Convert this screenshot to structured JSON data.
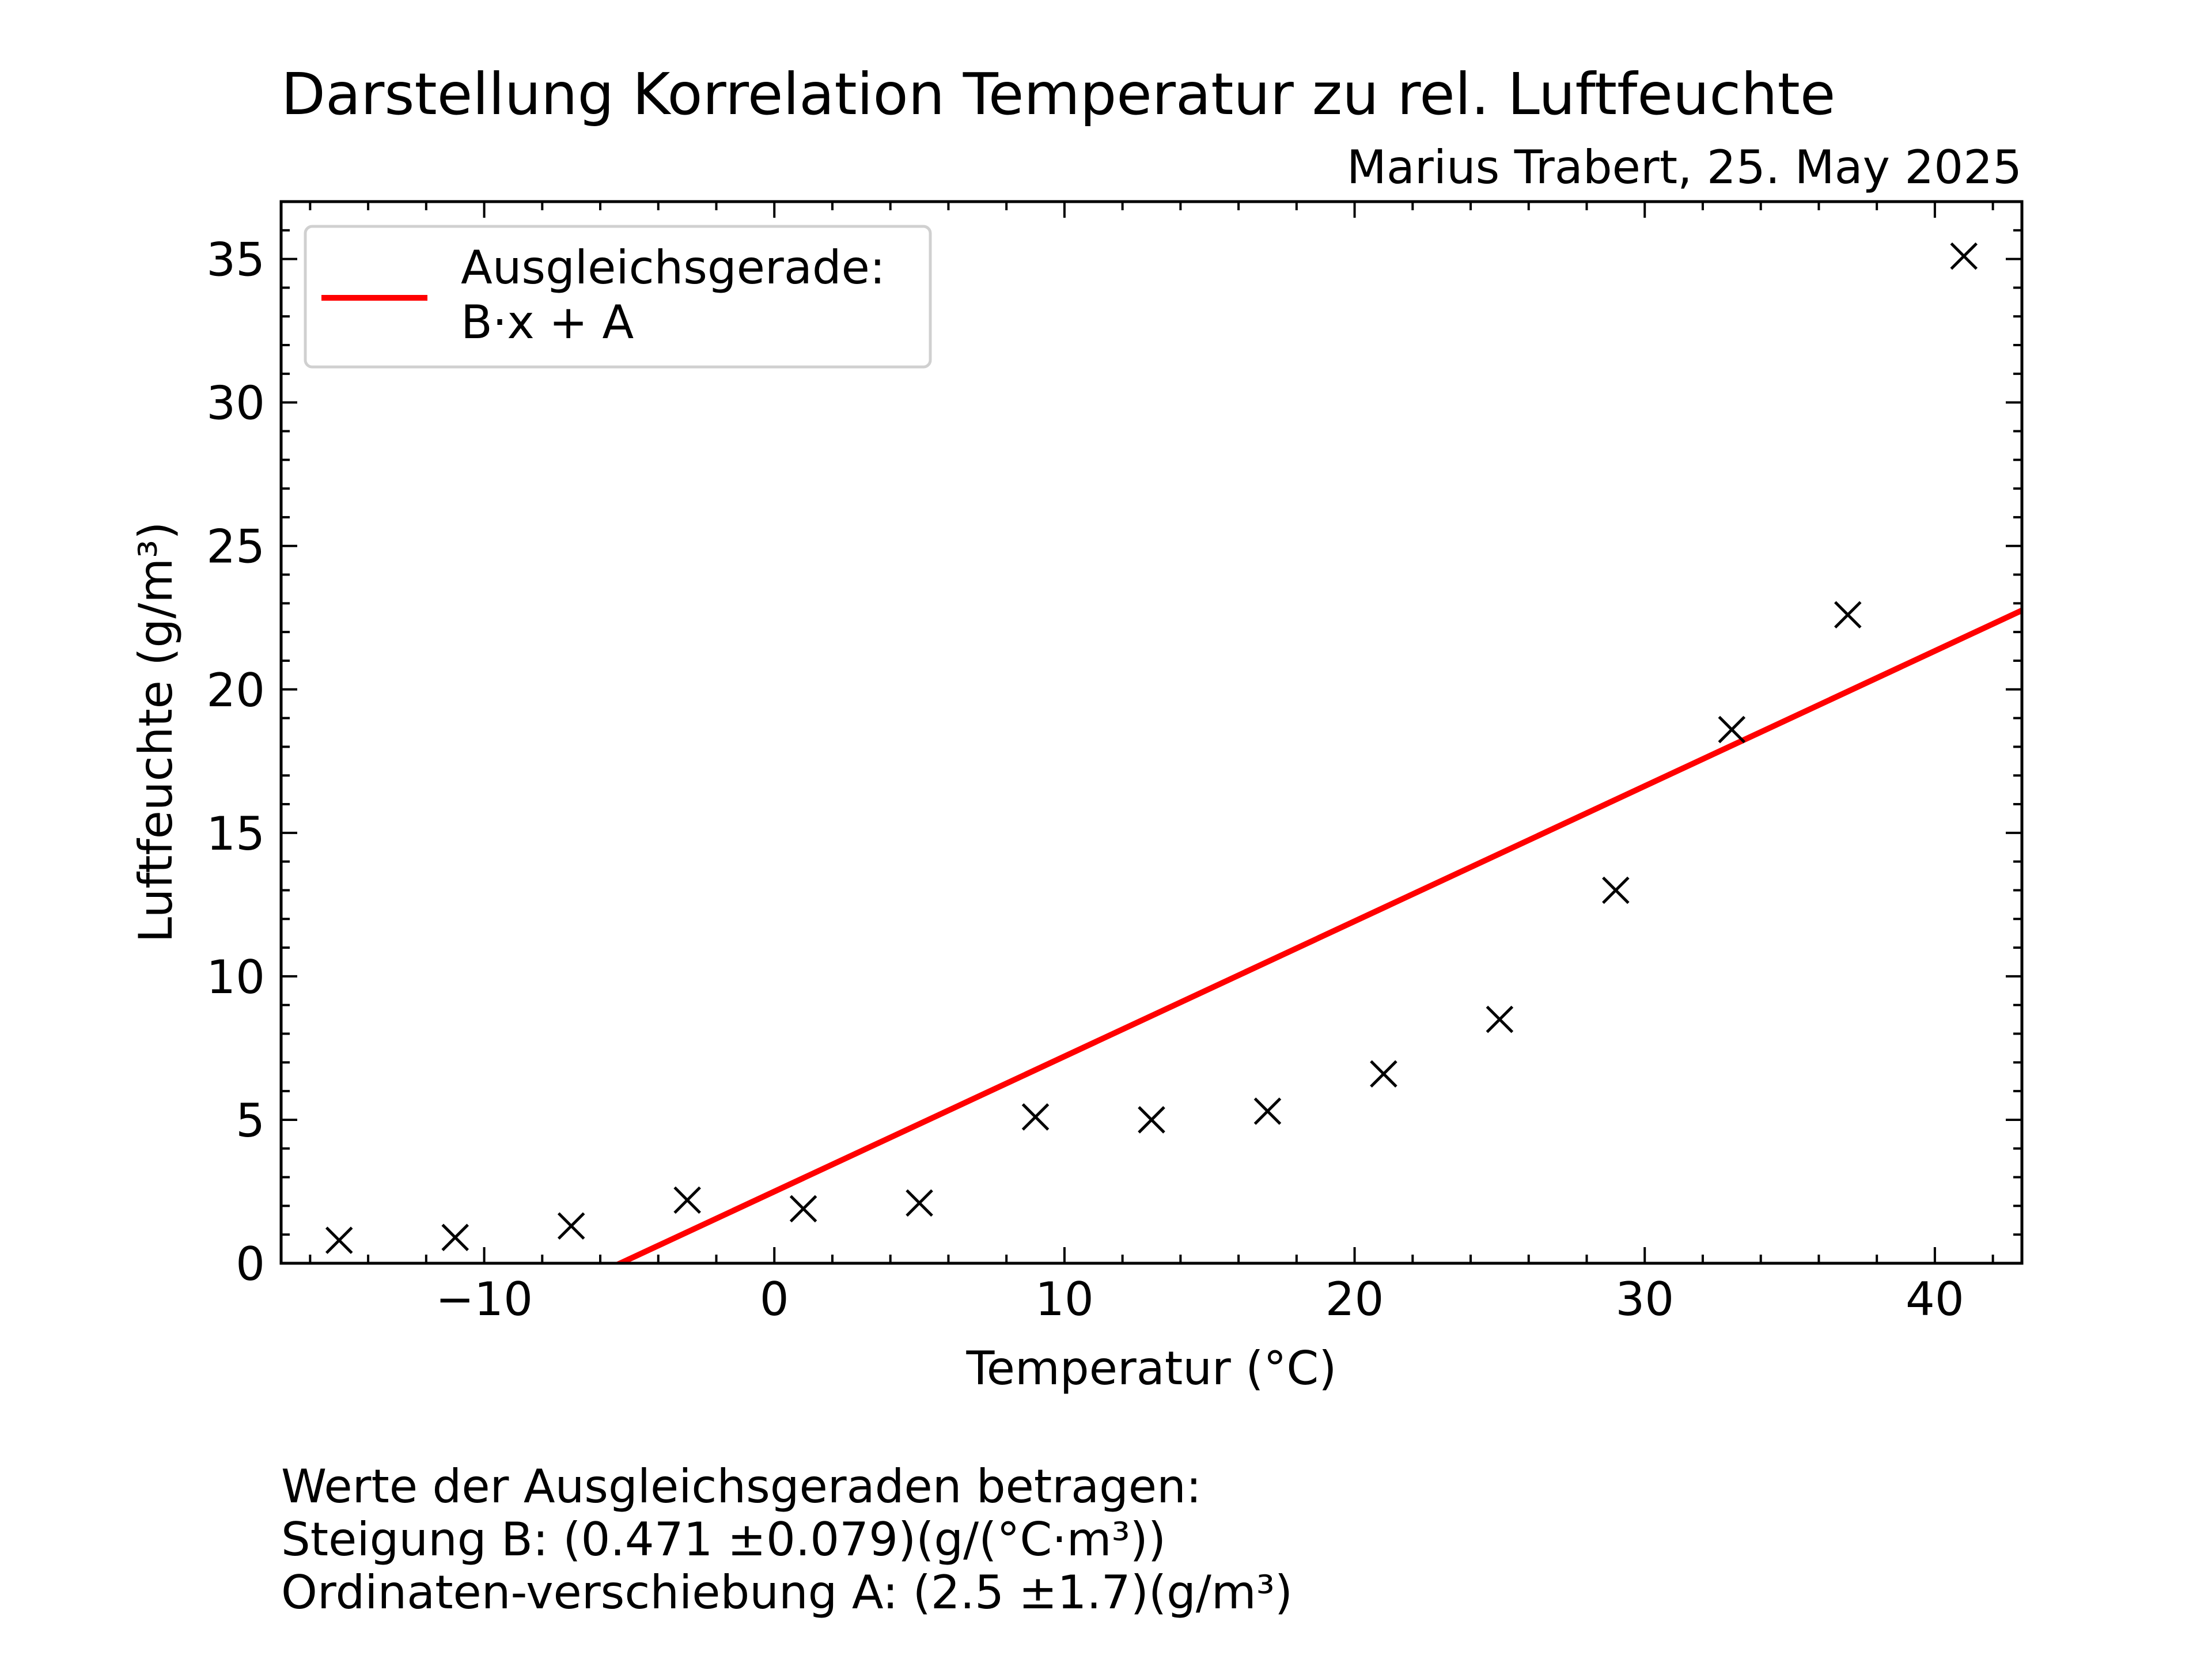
{
  "chart_data": {
    "type": "scatter",
    "title": "Darstellung Korrelation Temperatur zu rel. Luftfeuchte",
    "subtitle": "Marius Trabert, 25. May 2025",
    "xlabel": "Temperatur (°C)",
    "ylabel": "Luftfeuchte (g/m³)",
    "xlim": [
      -17,
      43
    ],
    "ylim": [
      0,
      37
    ],
    "x_ticks": [
      -10,
      0,
      10,
      20,
      30,
      40
    ],
    "x_tick_labels": [
      "−10",
      "0",
      "10",
      "20",
      "30",
      "40"
    ],
    "y_ticks": [
      0,
      5,
      10,
      15,
      20,
      25,
      30,
      35
    ],
    "y_tick_labels": [
      "0",
      "5",
      "10",
      "15",
      "20",
      "25",
      "30",
      "35"
    ],
    "grid": false,
    "legend_position": "top-left",
    "series": [
      {
        "kind": "scatter",
        "marker": "x",
        "color": "#000000",
        "x": [
          -15,
          -11,
          -7,
          -3,
          1,
          5,
          9,
          13,
          17,
          21,
          25,
          29,
          33,
          37,
          41
        ],
        "y": [
          0.8,
          0.9,
          1.3,
          2.2,
          1.9,
          2.1,
          5.1,
          5.0,
          5.3,
          6.6,
          8.5,
          13.0,
          18.6,
          22.6,
          35.1
        ]
      },
      {
        "kind": "line",
        "name": "Ausgleichsgerade:\nB·x + A",
        "color": "#ff0000",
        "slope": 0.471,
        "intercept": 2.5
      }
    ]
  },
  "legend": {
    "line1": "Ausgleichsgerade:",
    "line2": "B·x + A"
  },
  "notes": {
    "line1": "Werte der Ausgleichsgeraden betragen:",
    "line2": "Steigung B: (0.471 ±0.079)(g/(°C·m³))",
    "line3": "Ordinaten-verschiebung A: (2.5 ±1.7)(g/m³)"
  }
}
